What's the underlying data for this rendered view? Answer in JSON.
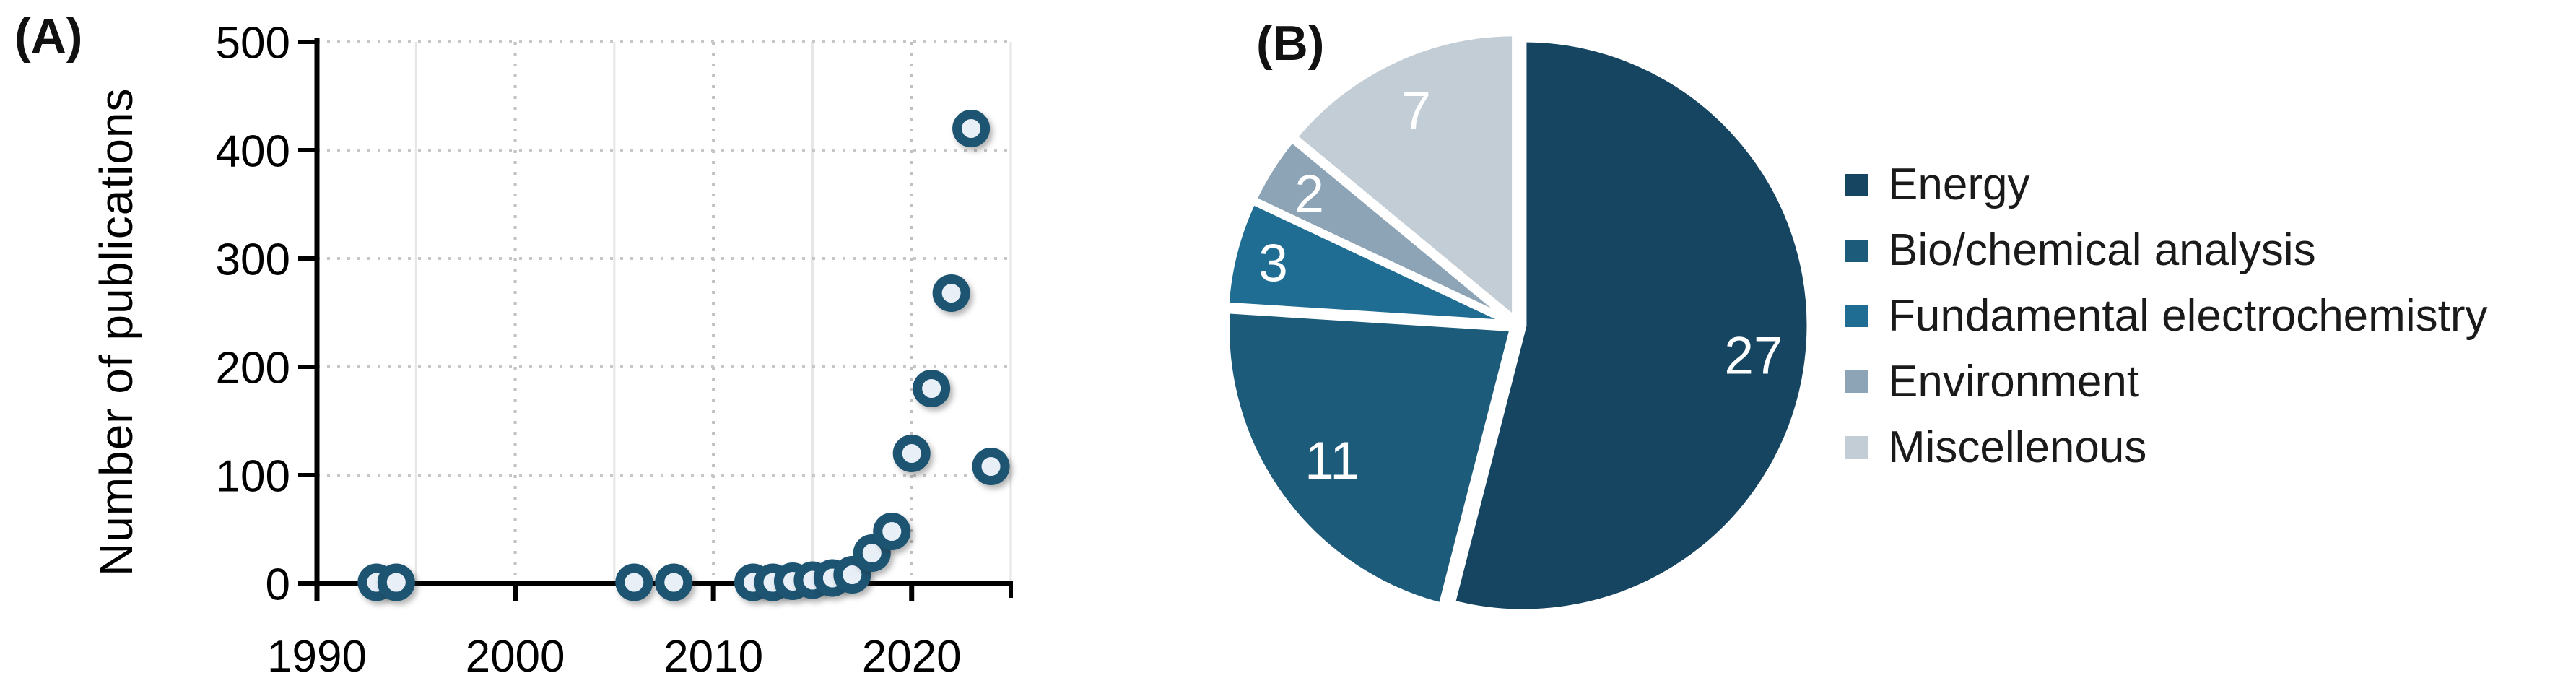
{
  "panels": {
    "a_label": "(A)",
    "b_label": "(B)"
  },
  "colors": {
    "background": "#ffffff",
    "axis": "#000000",
    "grid_dotted_horizontal": "#c7c7c7",
    "grid_dotted_vertical": "#c0c0c0",
    "grid_solid_vertical": "#e6e6e6",
    "marker_ring": "#1c5472",
    "marker_fill": "#e9eff7",
    "pie_separator": "#ffffff",
    "pie_value_label": "#ffffff",
    "legend_text": "#1a1a1a"
  },
  "chart_data": [
    {
      "type": "scatter",
      "panel": "A",
      "title": "",
      "xlabel": "",
      "ylabel": "Number of publications",
      "xlim": [
        1990,
        2025
      ],
      "ylim": [
        0,
        500
      ],
      "xticks": [
        1990,
        2000,
        2010,
        2020
      ],
      "yticks": [
        0,
        100,
        200,
        300,
        400,
        500
      ],
      "grid": {
        "h_dotted": [
          100,
          200,
          300,
          400,
          500
        ],
        "v_dotted": [
          2000,
          2010,
          2020
        ],
        "v_solid": [
          1995,
          2005,
          2015,
          2025
        ]
      },
      "points": [
        {
          "year": 1993,
          "value": 1
        },
        {
          "year": 1994,
          "value": 1
        },
        {
          "year": 2006,
          "value": 1
        },
        {
          "year": 2008,
          "value": 1
        },
        {
          "year": 2012,
          "value": 1
        },
        {
          "year": 2013,
          "value": 1
        },
        {
          "year": 2014,
          "value": 2
        },
        {
          "year": 2015,
          "value": 3
        },
        {
          "year": 2016,
          "value": 5
        },
        {
          "year": 2017,
          "value": 8
        },
        {
          "year": 2018,
          "value": 28
        },
        {
          "year": 2019,
          "value": 48
        },
        {
          "year": 2020,
          "value": 120
        },
        {
          "year": 2021,
          "value": 180
        },
        {
          "year": 2022,
          "value": 268
        },
        {
          "year": 2023,
          "value": 420
        },
        {
          "year": 2024,
          "value": 108
        }
      ]
    },
    {
      "type": "pie",
      "panel": "B",
      "title": "",
      "start_angle_deg": 0,
      "direction": "clockwise",
      "total": 50,
      "slices": [
        {
          "label": "Energy",
          "value": 27,
          "color": "#164561",
          "label_r_frac": 0.81
        },
        {
          "label": "Bio/chemical analysis",
          "value": 11,
          "color": "#1d5b7b",
          "label_r_frac": 0.78
        },
        {
          "label": "Fundamental electrochemistry",
          "value": 3,
          "color": "#1f6d92",
          "label_r_frac": 0.86
        },
        {
          "label": "Environment",
          "value": 2,
          "color": "#8ca4b6",
          "label_r_frac": 0.84
        },
        {
          "label": "Miscellenous",
          "value": 7,
          "color": "#c3cdd6",
          "label_r_frac": 0.81
        }
      ],
      "legend_position": "right"
    }
  ]
}
